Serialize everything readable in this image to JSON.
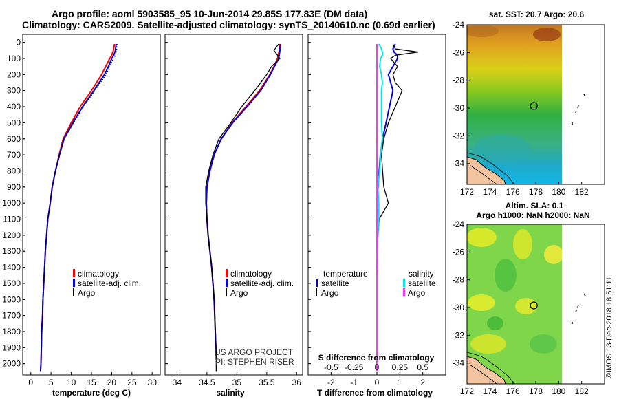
{
  "titles": {
    "line1": "Argo profile: aoml 5903585_95 10-Jun-2014 29.85S 177.83E (DM data)",
    "line2": "Climatology: CARS2009. Satellite-adjusted climatology: synTS_20140610.nc (0.69d earlier)"
  },
  "colors": {
    "climatology": "#ff0000",
    "satellite": "#0000dd",
    "argo": "#000000",
    "sat_salinity": "#00e5e5",
    "argo_salinity": "#ff33ff"
  },
  "depth_axis": {
    "ticks": [
      "0",
      "100",
      "200",
      "300",
      "400",
      "500",
      "600",
      "700",
      "800",
      "900",
      "1000",
      "1100",
      "1200",
      "1300",
      "1400",
      "1500",
      "1600",
      "1700",
      "1800",
      "1900",
      "2000"
    ],
    "range": [
      -50,
      2070
    ]
  },
  "legends": {
    "climatology": "climatology",
    "satellite_adj": "satellite-adj. clim.",
    "argo": "Argo",
    "temperature": "temperature",
    "salinity": "salinity",
    "satellite": "satellite"
  },
  "credits": {
    "project": "US ARGO PROJECT",
    "pi": "PI: STEPHEN RISER"
  },
  "chart_data": [
    {
      "type": "line",
      "title": "",
      "xlabel": "temperature (deg C)",
      "ylabel": "",
      "xlim": [
        -2,
        32
      ],
      "ylim": [
        2070,
        -50
      ],
      "xticks": [
        "0",
        "5",
        "10",
        "15",
        "20",
        "25",
        "30"
      ],
      "depth": [
        10,
        50,
        80,
        100,
        150,
        200,
        300,
        400,
        500,
        600,
        700,
        800,
        900,
        1000,
        1100,
        1200,
        1300,
        1400,
        1500,
        1600,
        1700,
        1800,
        1900,
        2000,
        2050
      ],
      "series": [
        {
          "name": "climatology",
          "values": [
            20.7,
            20.4,
            20.0,
            19.5,
            18.5,
            17.5,
            15.0,
            12.2,
            10.0,
            8.0,
            7.0,
            6.1,
            5.3,
            4.8,
            4.2,
            3.9,
            3.6,
            3.4,
            3.2,
            3.0,
            2.9,
            2.7,
            2.6,
            2.5,
            2.4
          ]
        },
        {
          "name": "satellite-adj. clim.",
          "values": [
            21.1,
            20.9,
            20.5,
            20.0,
            19.2,
            18.2,
            15.6,
            12.8,
            10.4,
            8.2,
            7.1,
            6.1,
            5.3,
            4.8,
            4.2,
            3.9,
            3.6,
            3.4,
            3.2,
            3.0,
            2.9,
            2.7,
            2.6,
            2.5,
            2.4
          ]
        },
        {
          "name": "Argo",
          "values": [
            21.3,
            21.2,
            21.0,
            20.4,
            19.5,
            18.6,
            15.8,
            13.0,
            10.6,
            8.3,
            7.1,
            6.1,
            5.3,
            4.8,
            4.2,
            3.9,
            3.6,
            3.4,
            3.2,
            3.0,
            2.9,
            2.7,
            2.6,
            2.5,
            2.4
          ]
        }
      ]
    },
    {
      "type": "line",
      "title": "",
      "xlabel": "salinity",
      "ylabel": "",
      "xlim": [
        33.8,
        36.1
      ],
      "ylim": [
        2070,
        -50
      ],
      "xticks": [
        "34",
        "34.5",
        "35",
        "35.5",
        "36"
      ],
      "depth": [
        10,
        50,
        100,
        150,
        200,
        300,
        400,
        500,
        600,
        700,
        800,
        900,
        1000,
        1100,
        1200,
        1300,
        1400,
        1500,
        1600,
        1700,
        1800,
        1900,
        2000,
        2050
      ],
      "series": [
        {
          "name": "climatology",
          "values": [
            35.72,
            35.71,
            35.68,
            35.62,
            35.55,
            35.38,
            35.15,
            34.92,
            34.74,
            34.62,
            34.55,
            34.5,
            34.49,
            34.5,
            34.52,
            34.55,
            34.58,
            34.6,
            34.62,
            34.63,
            34.64,
            34.65,
            34.66,
            34.66
          ]
        },
        {
          "name": "satellite-adj. clim.",
          "values": [
            35.73,
            35.72,
            35.7,
            35.63,
            35.56,
            35.4,
            35.17,
            34.93,
            34.74,
            34.62,
            34.55,
            34.5,
            34.49,
            34.5,
            34.52,
            34.55,
            34.58,
            34.6,
            34.62,
            34.63,
            34.64,
            34.65,
            34.66,
            34.66
          ]
        },
        {
          "name": "Argo",
          "values": [
            35.7,
            35.62,
            35.72,
            35.58,
            35.5,
            35.3,
            35.08,
            34.9,
            34.7,
            34.6,
            34.53,
            34.48,
            34.48,
            34.5,
            34.52,
            34.55,
            34.58,
            34.6,
            34.62,
            34.63,
            34.64,
            34.65,
            34.66,
            34.66
          ]
        }
      ]
    },
    {
      "type": "line",
      "title": "",
      "xlabel": "T difference from climatology",
      "x2label": "S difference from climatology",
      "ylabel": "",
      "xlim": [
        -3,
        3
      ],
      "ylim": [
        2070,
        -50
      ],
      "xticks": [
        "-2",
        "-1",
        "0",
        "1",
        "2"
      ],
      "x2ticks": [
        "-0.5",
        "-0.25",
        "0",
        "0.25",
        "0.5"
      ],
      "depth": [
        10,
        40,
        60,
        80,
        100,
        150,
        200,
        250,
        300,
        400,
        500,
        600,
        700,
        800,
        900,
        1000,
        1100,
        1200,
        1300,
        1400,
        1500,
        1600,
        1700,
        1800,
        1900,
        2000,
        2050
      ],
      "series": [
        {
          "name": "temperature satellite",
          "values": [
            0.8,
            0.7,
            0.75,
            0.9,
            0.9,
            0.7,
            0.5,
            0.6,
            0.7,
            0.55,
            0.4,
            0.25,
            0.15,
            0.1,
            0.05,
            0.02,
            0.01,
            0,
            0,
            0,
            0,
            0,
            0,
            0,
            0,
            0,
            0
          ]
        },
        {
          "name": "temperature Argo",
          "values": [
            0.7,
            0.8,
            1.8,
            0.8,
            0.6,
            0.9,
            0.7,
            0.8,
            1.1,
            0.8,
            0.5,
            0.3,
            0.2,
            0.25,
            0.3,
            0.5,
            0.1,
            0.05,
            0,
            0.02,
            0,
            0,
            0,
            0,
            0,
            0,
            0
          ]
        },
        {
          "name": "salinity satellite",
          "values": [
            0.02,
            0.05,
            0.06,
            0.06,
            0.04,
            0.03,
            0.05,
            0.06,
            0.05,
            0.05,
            0.05,
            0.06,
            0.04,
            0.03,
            0.01,
            0.02,
            0.02,
            0.01,
            0.005,
            0,
            0,
            0,
            0,
            0,
            0,
            0,
            0
          ]
        },
        {
          "name": "salinity Argo",
          "values": [
            0,
            0,
            0,
            0,
            0,
            0,
            0,
            0,
            0,
            0,
            0,
            0,
            0,
            0,
            0,
            0,
            0,
            0,
            0,
            0,
            0,
            0,
            0,
            0,
            0,
            0,
            0
          ]
        }
      ]
    },
    {
      "type": "heatmap",
      "title": "sat. SST: 20.7 Argo: 20.6",
      "xlabel": "",
      "ylabel": "",
      "xlim": [
        172,
        184
      ],
      "ylim": [
        -35.5,
        -24
      ],
      "xticks": [
        "172",
        "174",
        "176",
        "178",
        "180",
        "182"
      ],
      "yticks": [
        "-24",
        "-26",
        "-28",
        "-30",
        "-32",
        "-34"
      ],
      "profile_location": {
        "lon": 177.83,
        "lat": -29.85
      }
    },
    {
      "type": "heatmap",
      "title": "Altim. SLA: 0.1",
      "subtitle": "Argo h1000: NaN h2000: NaN",
      "xlabel": "",
      "ylabel": "",
      "xlim": [
        172,
        184
      ],
      "ylim": [
        -35.5,
        -24
      ],
      "xticks": [
        "172",
        "174",
        "176",
        "178",
        "180",
        "182"
      ],
      "yticks": [
        "-24",
        "-26",
        "-28",
        "-30",
        "-32",
        "-34"
      ],
      "profile_location": {
        "lon": 177.83,
        "lat": -29.85
      }
    }
  ],
  "side_stamp": "©IMOS 13-Dec-2018 18:51:11"
}
